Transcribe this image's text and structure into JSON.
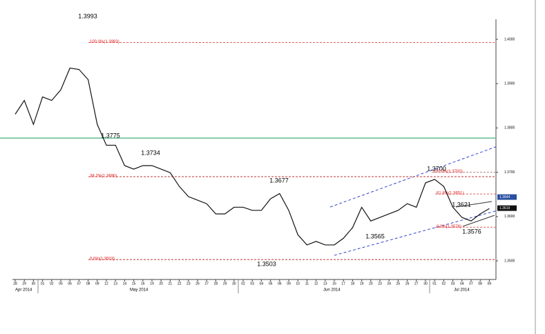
{
  "chart_data": {
    "type": "line",
    "categories": [
      "28",
      "29",
      "30",
      "01",
      "02",
      "05",
      "06",
      "07",
      "08",
      "09",
      "12",
      "13",
      "14",
      "15",
      "16",
      "19",
      "20",
      "21",
      "22",
      "23",
      "26",
      "27",
      "28",
      "29",
      "30",
      "02",
      "03",
      "04",
      "05",
      "06",
      "09",
      "10",
      "11",
      "12",
      "13",
      "16",
      "17",
      "18",
      "19",
      "20",
      "23",
      "24",
      "25",
      "26",
      "27",
      "30",
      "01",
      "02",
      "03",
      "04",
      "07",
      "08",
      "09"
    ],
    "months": [
      "Apr 2014",
      "May 2014",
      "Jun 2014",
      "Jul 2014"
    ],
    "series": [
      {
        "color": "#111111",
        "values": [
          1.3831,
          1.3862,
          1.3808,
          1.387,
          1.3862,
          1.3886,
          1.3935,
          1.3932,
          1.3909,
          1.3808,
          1.3761,
          1.3761,
          1.3715,
          1.3707,
          1.3715,
          1.3715,
          1.3707,
          1.3699,
          1.3668,
          1.3645,
          1.3637,
          1.3629,
          1.3606,
          1.3606,
          1.3621,
          1.3621,
          1.3614,
          1.3614,
          1.364,
          1.3652,
          1.3614,
          1.3559,
          1.3536,
          1.3544,
          1.3536,
          1.3536,
          1.3551,
          1.3575,
          1.3621,
          1.359,
          1.3598,
          1.3606,
          1.3614,
          1.3629,
          1.3621,
          1.3676,
          1.3684,
          1.3668,
          1.3621,
          1.3598,
          1.359,
          1.3606,
          1.3618
        ]
      }
    ],
    "ylim": [
      1.3458,
      1.4042
    ],
    "yticks": [
      {
        "value": 1.35,
        "label": "1.3500"
      },
      {
        "value": 1.36,
        "label": "1.3600"
      },
      {
        "value": 1.37,
        "label": "1.3700"
      },
      {
        "value": 1.38,
        "label": "1.3800"
      },
      {
        "value": 1.39,
        "label": "1.3900"
      },
      {
        "value": 1.4,
        "label": "1.4000"
      }
    ],
    "annotations": [
      1.3993,
      1.3775,
      1.3734,
      1.3677,
      1.3503,
      {
        "value": 1.37,
        "label": "1.3700"
      },
      1.3621,
      1.3576,
      1.3565
    ],
    "levels": [
      {
        "label": "100.0%(1.3993)",
        "value": 1.3993,
        "color": "#e06060"
      },
      {
        "label": "38.2%(1.3690)",
        "value": 1.369,
        "color": "#c03030"
      },
      {
        "label": "0.0%(1.3503)",
        "value": 1.3503,
        "color": "#c03030"
      },
      {
        "label": "100.0%(1.3700)",
        "value": 1.37,
        "color": "#b08080"
      },
      {
        "label": "61.8%(1.3651)",
        "value": 1.3651,
        "color": "#e06060"
      },
      {
        "label": "0.0%(1.3576)",
        "value": 1.3576,
        "color": "#e06060"
      }
    ],
    "support_line": {
      "value": 1.3777,
      "color": "#5fbf8f"
    },
    "price_markers": [
      {
        "value": 1.3644,
        "color": "#2a4fa0"
      },
      {
        "value": 1.3619,
        "color": "#111111"
      }
    ]
  }
}
